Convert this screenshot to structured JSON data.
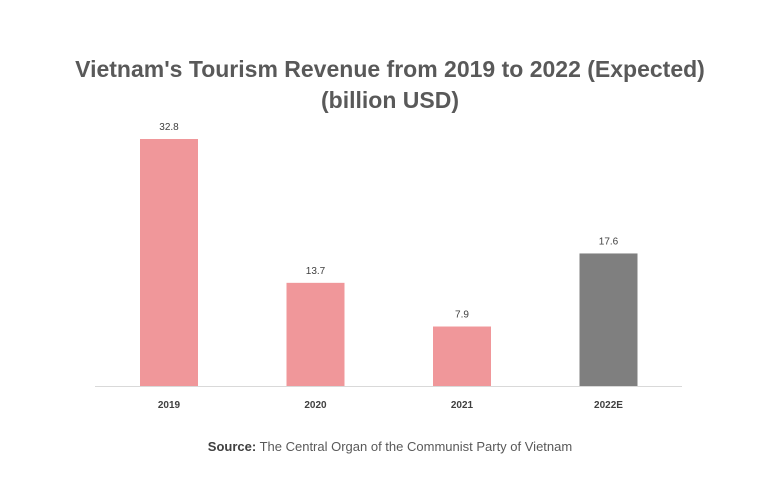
{
  "chart_data": {
    "type": "bar",
    "title": "Vietnam's Tourism Revenue from 2019 to 2022 (Expected)",
    "subtitle": "(billion USD)",
    "categories": [
      "2019",
      "2020",
      "2021",
      "2022E"
    ],
    "values": [
      32.8,
      13.7,
      7.9,
      17.6
    ],
    "bar_colors": [
      "#f0979a",
      "#f0979a",
      "#f0979a",
      "#7f7f7f"
    ],
    "ylim": [
      0,
      32.8
    ],
    "grid": false,
    "xlabel": "",
    "ylabel": ""
  },
  "source": {
    "label": "Source:",
    "text": " The Central Organ of the Communist Party of Vietnam"
  }
}
